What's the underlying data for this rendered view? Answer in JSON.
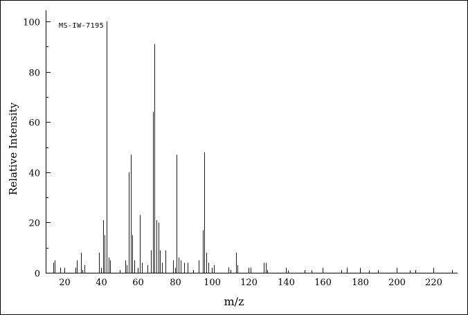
{
  "chart_data": {
    "type": "bar",
    "variant": "mass-spectrum",
    "annotation": "MS-IW-7195",
    "xlabel": "m/z",
    "ylabel": "Relative Intensity",
    "xlim": [
      10,
      233
    ],
    "ylim": [
      0,
      100
    ],
    "x_major_ticks": [
      20,
      40,
      60,
      80,
      100,
      120,
      140,
      160,
      180,
      200,
      220
    ],
    "x_minor_step": 10,
    "y_major_ticks": [
      0,
      20,
      40,
      60,
      80,
      100
    ],
    "y_minor_step": 10,
    "grid": false,
    "legend": "none",
    "axis_color": "#000000",
    "peak_color": "#1a1a1a",
    "background": "#ffffff",
    "peaks": [
      [
        14,
        4
      ],
      [
        15,
        5
      ],
      [
        18,
        2
      ],
      [
        26,
        2
      ],
      [
        27,
        5
      ],
      [
        29,
        8
      ],
      [
        31,
        3
      ],
      [
        39,
        8
      ],
      [
        41,
        21
      ],
      [
        42,
        15
      ],
      [
        43,
        100
      ],
      [
        44,
        6
      ],
      [
        45,
        5
      ],
      [
        53,
        5
      ],
      [
        54,
        3
      ],
      [
        55,
        40
      ],
      [
        56,
        47
      ],
      [
        57,
        15
      ],
      [
        58,
        5
      ],
      [
        61,
        23
      ],
      [
        62,
        4
      ],
      [
        65,
        3
      ],
      [
        67,
        9
      ],
      [
        68,
        64
      ],
      [
        69,
        91
      ],
      [
        70,
        21
      ],
      [
        71,
        20
      ],
      [
        72,
        9
      ],
      [
        73,
        4
      ],
      [
        75,
        9
      ],
      [
        79,
        5
      ],
      [
        81,
        47
      ],
      [
        82,
        6
      ],
      [
        83,
        5
      ],
      [
        85,
        4
      ],
      [
        87,
        4
      ],
      [
        93,
        5
      ],
      [
        95,
        17
      ],
      [
        96,
        48
      ],
      [
        97,
        8
      ],
      [
        98,
        4
      ],
      [
        101,
        3
      ],
      [
        109,
        2
      ],
      [
        113,
        8
      ],
      [
        114,
        3
      ],
      [
        121,
        2
      ],
      [
        128,
        4
      ],
      [
        129,
        4
      ],
      [
        141,
        1
      ],
      [
        154,
        1
      ],
      [
        173,
        2
      ],
      [
        185,
        1
      ],
      [
        207,
        1
      ]
    ]
  }
}
